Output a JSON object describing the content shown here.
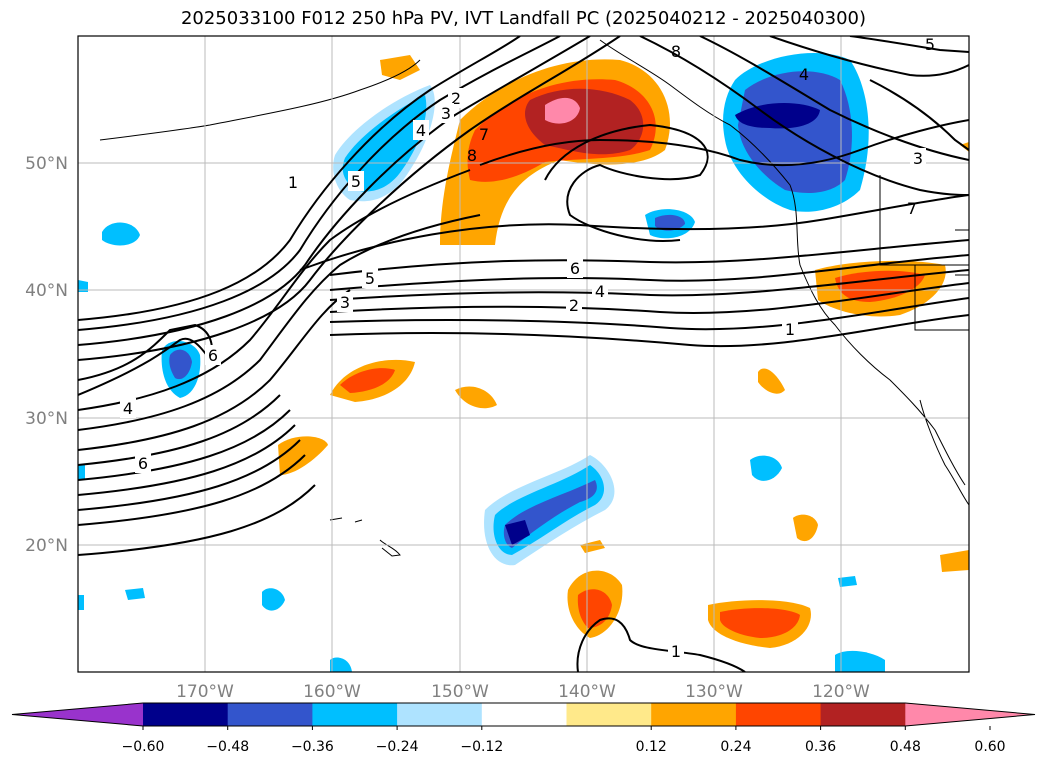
{
  "title": "2025033100 F012 250 hPa PV, IVT Landfall PC (2025040212 - 2025040300)",
  "map": {
    "lat_labels": [
      "50°N",
      "40°N",
      "30°N",
      "20°N"
    ],
    "lon_labels": [
      "170°W",
      "160°W",
      "150°W",
      "140°W",
      "130°W",
      "120°W"
    ],
    "contour_labels": [
      "1",
      "2",
      "3",
      "4",
      "5",
      "6",
      "7",
      "8"
    ],
    "grid": true
  },
  "colorbar": {
    "ticks": [
      "−0.60",
      "−0.48",
      "−0.36",
      "−0.24",
      "−0.12",
      "0.12",
      "0.24",
      "0.36",
      "0.48",
      "0.60"
    ],
    "colors": [
      "#9933cc",
      "#00008b",
      "#3355cc",
      "#00bfff",
      "#aee3ff",
      "#ffffff",
      "#ffe98a",
      "#ffa500",
      "#ff4500",
      "#b22222",
      "#ff88aa"
    ]
  }
}
